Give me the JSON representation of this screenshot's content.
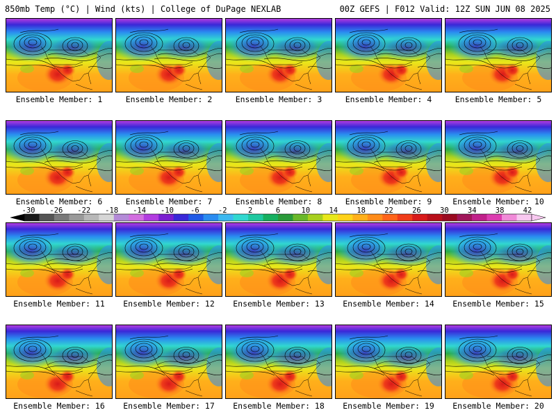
{
  "header": {
    "title_left": "850mb Temp (°C) | Wind (kts) | College of DuPage NEXLAB",
    "title_right": "00Z GEFS | F012 Valid: 12Z SUN JUN 08 2025"
  },
  "members": [
    "Ensemble Member: 1",
    "Ensemble Member: 2",
    "Ensemble Member: 3",
    "Ensemble Member: 4",
    "Ensemble Member: 5",
    "Ensemble Member: 6",
    "Ensemble Member: 7",
    "Ensemble Member: 8",
    "Ensemble Member: 9",
    "Ensemble Member: 10",
    "Ensemble Member: 11",
    "Ensemble Member: 12",
    "Ensemble Member: 13",
    "Ensemble Member: 14",
    "Ensemble Member: 15",
    "Ensemble Member: 16",
    "Ensemble Member: 17",
    "Ensemble Member: 18",
    "Ensemble Member: 19",
    "Ensemble Member: 20"
  ],
  "colorbar": {
    "tick_labels": [
      "-30",
      "-26",
      "-22",
      "-18",
      "-14",
      "-10",
      "-6",
      "-2",
      "2",
      "6",
      "10",
      "14",
      "18",
      "22",
      "26",
      "30",
      "34",
      "38",
      "42"
    ],
    "colors": [
      "#1a1a1a",
      "#555555",
      "#7a7a7a",
      "#9a9a9a",
      "#b8b8b8",
      "#d6d6d6",
      "#b48bd8",
      "#d26ee0",
      "#b23ce0",
      "#7a1fd0",
      "#3a28d8",
      "#1f5ae6",
      "#2a8cf0",
      "#3cb8f0",
      "#31d8d0",
      "#1fc8a0",
      "#16b060",
      "#2a9a3a",
      "#6ab82a",
      "#a8d01f",
      "#e8e81a",
      "#ffd21a",
      "#ffb01a",
      "#ff8c1a",
      "#ff641a",
      "#f03c1a",
      "#d81a1a",
      "#b80f1a",
      "#9a0a20",
      "#a0165a",
      "#c0208a",
      "#dc3cb0",
      "#f08ad8",
      "#f8c8f0"
    ]
  }
}
